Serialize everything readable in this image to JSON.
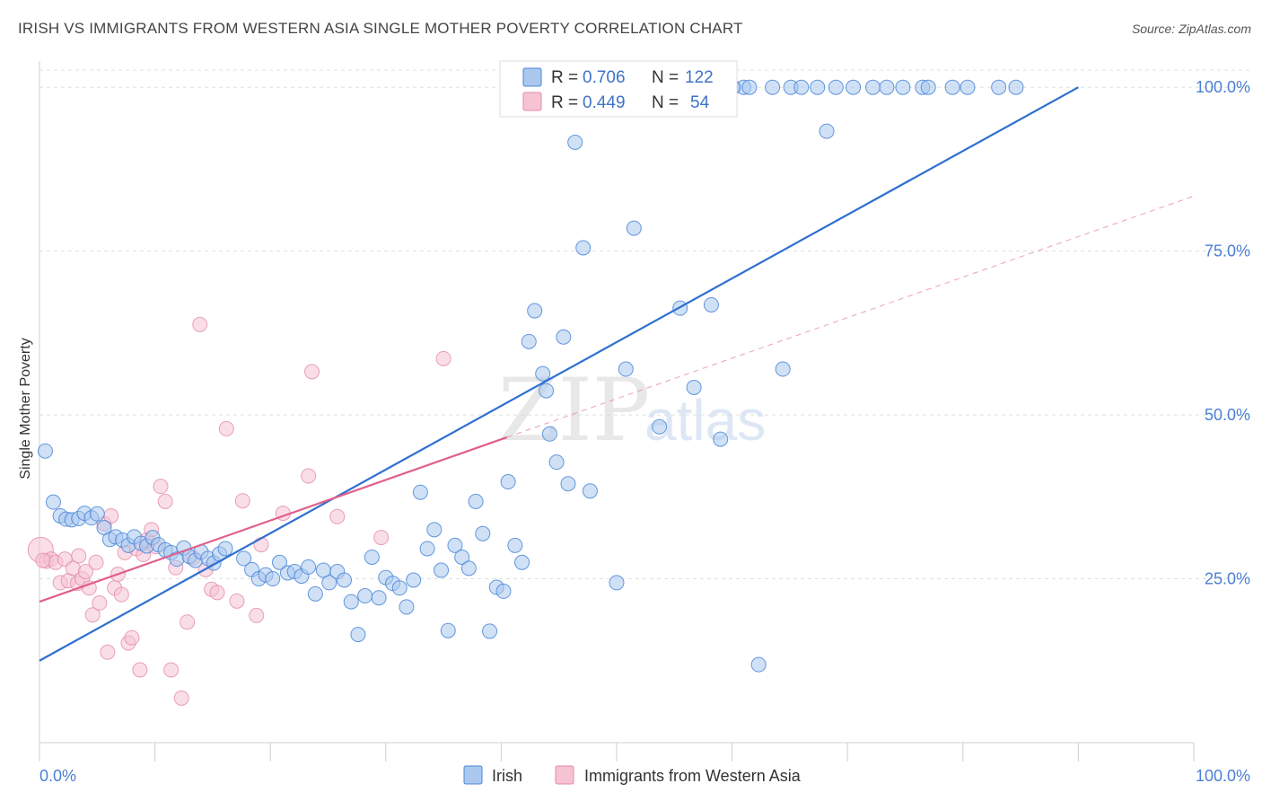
{
  "header": {
    "title": "IRISH VS IMMIGRANTS FROM WESTERN ASIA SINGLE MOTHER POVERTY CORRELATION CHART",
    "source": "Source: ZipAtlas.com"
  },
  "watermark": {
    "zip": "ZIP",
    "atlas": "atlas"
  },
  "legend": {
    "series": [
      {
        "r_label": "R = ",
        "r_value": "0.706",
        "n_label": "N = ",
        "n_value": "122"
      },
      {
        "r_label": "R = ",
        "r_value": "0.449",
        "n_label": "N = ",
        "n_value": "54"
      }
    ]
  },
  "chart_data": {
    "type": "scatter",
    "title": "IRISH VS IMMIGRANTS FROM WESTERN ASIA SINGLE MOTHER POVERTY CORRELATION CHART",
    "xlabel": "",
    "ylabel": "Single Mother Poverty",
    "xlim": [
      0,
      100
    ],
    "ylim": [
      0,
      104
    ],
    "x_tick_labels": [
      "0.0%",
      "100.0%"
    ],
    "y_ticks": [
      25,
      50,
      75,
      100
    ],
    "y_tick_labels": [
      "25.0%",
      "50.0%",
      "75.0%",
      "100.0%"
    ],
    "grid": true,
    "legend_position": "top-center",
    "colors": {
      "irish_fill": "#aac8ee",
      "irish_stroke": "#4a86d8",
      "irish_line": "#2f6fd0",
      "wa_fill": "#f6c3d3",
      "wa_stroke": "#e48aa8",
      "wa_line": "#e0608c",
      "tick_text": "#4a7fd4"
    },
    "series": [
      {
        "name": "Irish",
        "r": 0.706,
        "n": 122,
        "trend": {
          "x": [
            0,
            90
          ],
          "y": [
            12.5,
            100
          ]
        },
        "points": [
          [
            0.5,
            44.5
          ],
          [
            1.2,
            36.7
          ],
          [
            1.8,
            34.6
          ],
          [
            2.3,
            34.1
          ],
          [
            2.8,
            34.0
          ],
          [
            3.4,
            34.2
          ],
          [
            3.9,
            35.0
          ],
          [
            4.5,
            34.3
          ],
          [
            5.0,
            34.9
          ],
          [
            5.6,
            32.8
          ],
          [
            6.1,
            31.0
          ],
          [
            6.6,
            31.4
          ],
          [
            7.2,
            30.9
          ],
          [
            7.7,
            30.1
          ],
          [
            8.2,
            31.4
          ],
          [
            8.8,
            30.4
          ],
          [
            9.3,
            30.0
          ],
          [
            9.8,
            31.3
          ],
          [
            10.3,
            30.2
          ],
          [
            10.9,
            29.4
          ],
          [
            11.4,
            29.0
          ],
          [
            11.9,
            28.0
          ],
          [
            12.5,
            29.7
          ],
          [
            13.0,
            28.4
          ],
          [
            13.5,
            27.8
          ],
          [
            14.0,
            29.1
          ],
          [
            14.6,
            28.1
          ],
          [
            15.1,
            27.4
          ],
          [
            15.6,
            28.8
          ],
          [
            16.1,
            29.6
          ],
          [
            17.7,
            28.1
          ],
          [
            18.4,
            26.4
          ],
          [
            19.0,
            25.0
          ],
          [
            19.6,
            25.6
          ],
          [
            20.2,
            25.0
          ],
          [
            20.8,
            27.5
          ],
          [
            21.5,
            25.9
          ],
          [
            22.1,
            26.1
          ],
          [
            22.7,
            25.4
          ],
          [
            23.3,
            26.8
          ],
          [
            23.9,
            22.7
          ],
          [
            24.6,
            26.3
          ],
          [
            25.1,
            24.4
          ],
          [
            25.8,
            26.1
          ],
          [
            26.4,
            24.8
          ],
          [
            27.0,
            21.5
          ],
          [
            27.6,
            16.5
          ],
          [
            28.2,
            22.4
          ],
          [
            28.8,
            28.3
          ],
          [
            29.4,
            22.1
          ],
          [
            30.0,
            25.2
          ],
          [
            30.6,
            24.3
          ],
          [
            31.2,
            23.6
          ],
          [
            31.8,
            20.7
          ],
          [
            32.4,
            24.8
          ],
          [
            33.0,
            38.2
          ],
          [
            33.6,
            29.6
          ],
          [
            34.2,
            32.5
          ],
          [
            34.8,
            26.3
          ],
          [
            35.4,
            17.1
          ],
          [
            36.0,
            30.1
          ],
          [
            36.6,
            28.3
          ],
          [
            37.2,
            26.6
          ],
          [
            37.8,
            36.8
          ],
          [
            38.4,
            31.9
          ],
          [
            39.0,
            17.0
          ],
          [
            39.6,
            23.7
          ],
          [
            40.2,
            23.1
          ],
          [
            40.6,
            39.8
          ],
          [
            41.2,
            30.1
          ],
          [
            41.8,
            27.5
          ],
          [
            42.4,
            61.2
          ],
          [
            42.9,
            65.9
          ],
          [
            43.6,
            56.3
          ],
          [
            43.9,
            53.7
          ],
          [
            44.2,
            47.1
          ],
          [
            44.8,
            42.8
          ],
          [
            45.4,
            61.9
          ],
          [
            45.8,
            39.5
          ],
          [
            46.4,
            91.6
          ],
          [
            47.1,
            75.5
          ],
          [
            47.7,
            38.4
          ],
          [
            48.1,
            100
          ],
          [
            48.9,
            100
          ],
          [
            49.5,
            100
          ],
          [
            50.0,
            24.4
          ],
          [
            50.8,
            57.0
          ],
          [
            51.5,
            78.5
          ],
          [
            52.0,
            100
          ],
          [
            53.0,
            100
          ],
          [
            53.5,
            100
          ],
          [
            54.2,
            100
          ],
          [
            55.5,
            100
          ],
          [
            56.5,
            100
          ],
          [
            57.5,
            100
          ],
          [
            58.2,
            66.8
          ],
          [
            59.0,
            46.3
          ],
          [
            60.0,
            100
          ],
          [
            61.0,
            100
          ],
          [
            62.3,
            11.9
          ],
          [
            63.5,
            100
          ],
          [
            65.1,
            100
          ],
          [
            66.0,
            100
          ],
          [
            67.4,
            100
          ],
          [
            68.2,
            93.3
          ],
          [
            69.0,
            100
          ],
          [
            70.5,
            100
          ],
          [
            72.2,
            100
          ],
          [
            73.4,
            100
          ],
          [
            74.8,
            100
          ],
          [
            76.5,
            100
          ],
          [
            77.0,
            100
          ],
          [
            79.1,
            100
          ],
          [
            80.4,
            100
          ],
          [
            83.1,
            100
          ],
          [
            84.6,
            100
          ],
          [
            53.7,
            48.2
          ],
          [
            55.5,
            66.3
          ],
          [
            56.7,
            54.2
          ],
          [
            64.4,
            57.0
          ],
          [
            60.1,
            100
          ],
          [
            61.5,
            100
          ]
        ]
      },
      {
        "name": "Immigrants from Western Asia",
        "r": 0.449,
        "n": 54,
        "trend": {
          "x": [
            0,
            40.5
          ],
          "y": [
            21.5,
            46.6
          ]
        },
        "trend_dashed": {
          "x": [
            40.5,
            100
          ],
          "y": [
            46.6,
            83.4
          ]
        },
        "points": [
          [
            0.1,
            29.4
          ],
          [
            0.6,
            27.7
          ],
          [
            1.0,
            28.0
          ],
          [
            1.4,
            27.5
          ],
          [
            1.8,
            24.4
          ],
          [
            2.2,
            28.0
          ],
          [
            2.5,
            24.7
          ],
          [
            2.9,
            26.6
          ],
          [
            3.3,
            24.3
          ],
          [
            3.7,
            25.0
          ],
          [
            4.0,
            26.1
          ],
          [
            4.3,
            23.6
          ],
          [
            4.6,
            19.5
          ],
          [
            4.9,
            27.5
          ],
          [
            5.2,
            21.3
          ],
          [
            5.6,
            33.4
          ],
          [
            5.9,
            13.8
          ],
          [
            6.2,
            34.6
          ],
          [
            6.5,
            23.6
          ],
          [
            6.8,
            25.7
          ],
          [
            7.1,
            22.6
          ],
          [
            7.4,
            29.0
          ],
          [
            7.7,
            15.2
          ],
          [
            8.0,
            16.0
          ],
          [
            8.4,
            29.6
          ],
          [
            8.7,
            11.1
          ],
          [
            9.0,
            28.7
          ],
          [
            9.3,
            30.9
          ],
          [
            9.7,
            32.5
          ],
          [
            10.1,
            29.9
          ],
          [
            10.5,
            39.1
          ],
          [
            10.9,
            36.8
          ],
          [
            11.4,
            11.1
          ],
          [
            11.8,
            26.7
          ],
          [
            12.3,
            6.8
          ],
          [
            12.8,
            18.4
          ],
          [
            13.3,
            28.2
          ],
          [
            13.9,
            63.8
          ],
          [
            14.4,
            26.4
          ],
          [
            14.9,
            23.4
          ],
          [
            15.4,
            22.9
          ],
          [
            16.2,
            47.9
          ],
          [
            17.1,
            21.6
          ],
          [
            17.6,
            36.9
          ],
          [
            18.8,
            19.4
          ],
          [
            19.2,
            30.2
          ],
          [
            21.1,
            35.0
          ],
          [
            23.3,
            40.7
          ],
          [
            23.6,
            56.6
          ],
          [
            25.8,
            34.5
          ],
          [
            29.6,
            31.3
          ],
          [
            35.0,
            58.6
          ],
          [
            0.3,
            27.8
          ],
          [
            3.4,
            28.5
          ]
        ]
      }
    ]
  },
  "bottom_legend": {
    "irish_label": "Irish",
    "wa_label": "Immigrants from Western Asia"
  }
}
